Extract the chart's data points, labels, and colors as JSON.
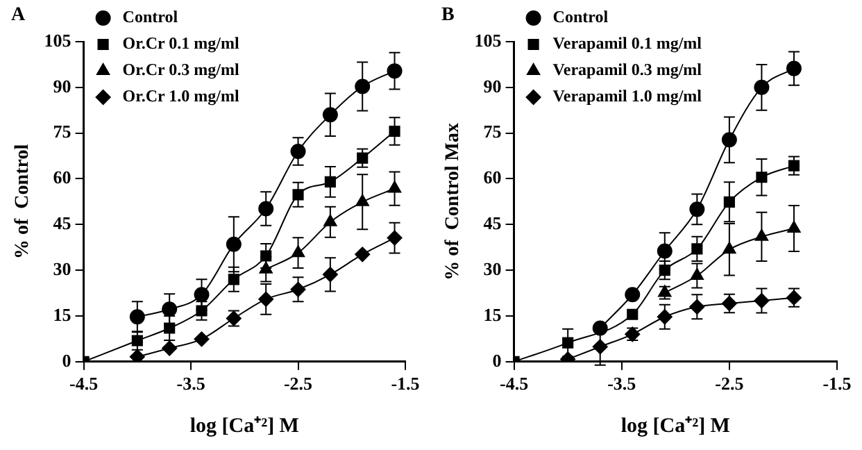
{
  "chart_data": [
    {
      "type": "line",
      "title": "A",
      "xlabel": "log [Ca⁺²] M",
      "ylabel": "% of  Control",
      "x": [
        -4.5,
        -4.0,
        -3.7,
        -3.4,
        -3.1,
        -2.8,
        -2.5,
        -2.2,
        -1.9,
        -1.6
      ],
      "xlim": [
        -4.5,
        -1.5
      ],
      "xticks": [
        -4.5,
        -3.5,
        -2.5,
        -1.5
      ],
      "ylim": [
        0,
        105
      ],
      "yticks": [
        0,
        15,
        30,
        45,
        60,
        75,
        90,
        105
      ],
      "grid": false,
      "legend": "top left",
      "series": [
        {
          "name": "Control",
          "color": "#000000",
          "marker": "circle",
          "values": [
            null,
            14.7,
            17.2,
            22,
            38.5,
            50.2,
            69,
            81,
            90.3,
            95.4
          ],
          "errors": [
            null,
            5,
            5,
            5,
            9,
            5.5,
            4.5,
            7,
            8,
            6
          ]
        },
        {
          "name": "Or.Cr 0.1 mg/ml",
          "color": "#000000",
          "marker": "square",
          "values": [
            0,
            6.9,
            11,
            16.7,
            27,
            34.7,
            54.8,
            59,
            66.8,
            75.6
          ],
          "errors": [
            null,
            3,
            4,
            3,
            4,
            4,
            4,
            5,
            3,
            4.5
          ]
        },
        {
          "name": "Or.Cr 0.3 mg/ml",
          "color": "#000000",
          "marker": "triangle",
          "values": [
            null,
            null,
            null,
            null,
            null,
            30.3,
            35.7,
            45.8,
            52.4,
            56.8
          ],
          "errors": [
            null,
            null,
            null,
            null,
            null,
            4,
            5,
            5,
            9,
            5.5
          ]
        },
        {
          "name": "Or.Cr 1.0 mg/ml",
          "color": "#000000",
          "marker": "diamond",
          "values": [
            null,
            1.6,
            4.4,
            7.4,
            14.2,
            20.5,
            23.7,
            28.6,
            35.2,
            40.6
          ],
          "errors": [
            null,
            null,
            null,
            null,
            2.5,
            5,
            4,
            5.5,
            null,
            5
          ]
        }
      ]
    },
    {
      "type": "line",
      "title": "B",
      "xlabel": "log [Ca⁺²] M",
      "ylabel": "% of  Control Max",
      "x": [
        -4.5,
        -4.0,
        -3.7,
        -3.4,
        -3.1,
        -2.8,
        -2.5,
        -2.2,
        -1.9
      ],
      "xlim": [
        -4.5,
        -1.5
      ],
      "xticks": [
        -4.5,
        -3.5,
        -2.5,
        -1.5
      ],
      "ylim": [
        0,
        105
      ],
      "yticks": [
        0,
        15,
        30,
        45,
        60,
        75,
        90,
        105
      ],
      "grid": false,
      "legend": "top left",
      "series": [
        {
          "name": "Control",
          "color": "#000000",
          "marker": "circle",
          "values": [
            null,
            null,
            11,
            22,
            36.3,
            50,
            72.8,
            90,
            96.2
          ],
          "errors": [
            null,
            null,
            null,
            null,
            6,
            5,
            7.5,
            7.5,
            5.5
          ]
        },
        {
          "name": "Verapamil 0.1 mg/ml",
          "color": "#000000",
          "marker": "square",
          "values": [
            0,
            6.2,
            null,
            15.5,
            30,
            37,
            52.4,
            60.5,
            64.3
          ],
          "errors": [
            null,
            4.5,
            null,
            null,
            3,
            4,
            6.5,
            6,
            3
          ]
        },
        {
          "name": "Verapamil 0.3 mg/ml",
          "color": "#000000",
          "marker": "triangle",
          "values": [
            null,
            null,
            null,
            null,
            22.6,
            28.2,
            36.8,
            41,
            43.7
          ],
          "errors": [
            null,
            null,
            null,
            null,
            2,
            4,
            8.5,
            8,
            7.5
          ]
        },
        {
          "name": "Verapamil 1.0 mg/ml",
          "color": "#000000",
          "marker": "diamond",
          "values": [
            null,
            0.8,
            4.9,
            9,
            14.7,
            18,
            19.1,
            20,
            21
          ],
          "errors": [
            null,
            null,
            6,
            2,
            4,
            4,
            3,
            4,
            3
          ]
        }
      ]
    }
  ]
}
